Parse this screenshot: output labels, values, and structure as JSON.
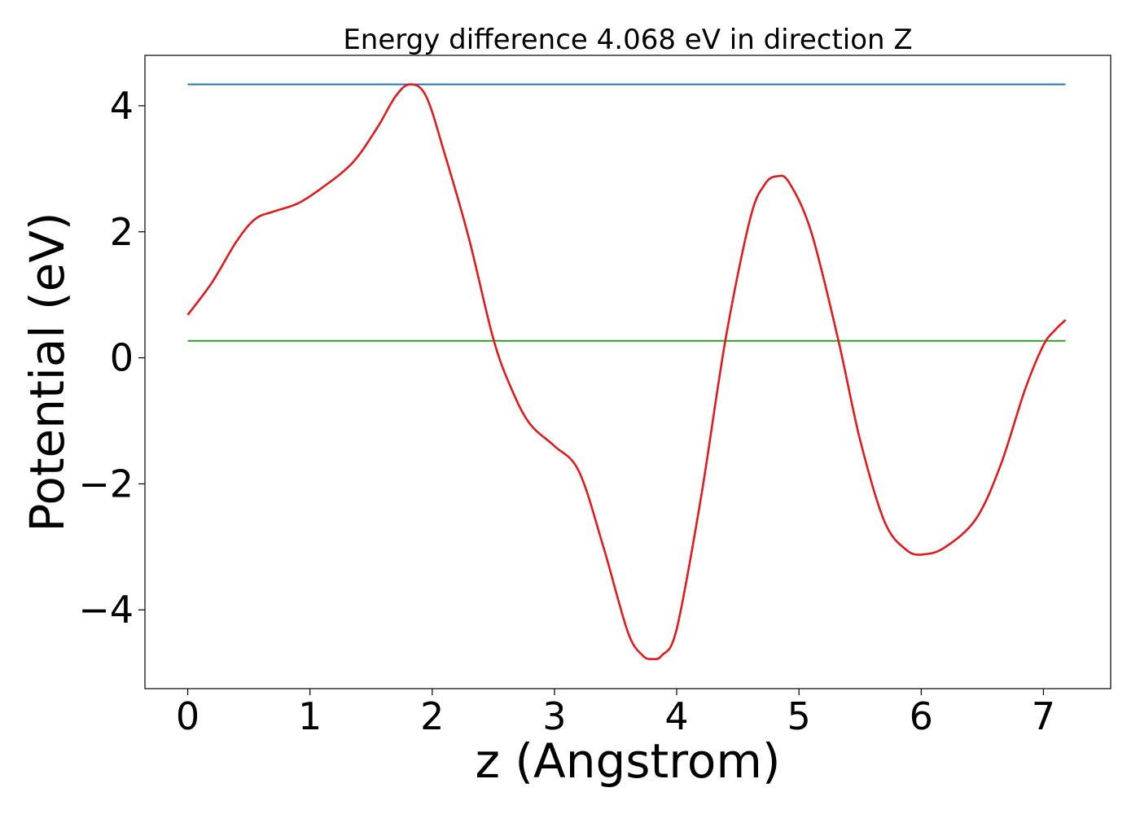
{
  "chart_data": {
    "type": "line",
    "title": "Energy difference 4.068 eV in direction Z",
    "xlabel": "z (Angstrom)",
    "ylabel": "Potential (eV)",
    "xlim": [
      -0.35,
      7.55
    ],
    "ylim": [
      -5.25,
      4.8
    ],
    "xticks": [
      0,
      1,
      2,
      3,
      4,
      5,
      6,
      7
    ],
    "xtick_labels": [
      "0",
      "1",
      "2",
      "3",
      "4",
      "5",
      "6",
      "7"
    ],
    "yticks": [
      -4,
      -2,
      0,
      2,
      4
    ],
    "ytick_labels": [
      "−4",
      "−2",
      "0",
      "2",
      "4"
    ],
    "grid": false,
    "series": [
      {
        "color": "#1f77b4",
        "x": [
          0,
          7.18
        ],
        "values": [
          4.34,
          4.34
        ]
      },
      {
        "color": "#2ca02c",
        "x": [
          0,
          7.18
        ],
        "values": [
          0.27,
          0.27
        ]
      },
      {
        "color": "#e31a1c",
        "x": [
          0,
          0.2,
          0.4,
          0.55,
          0.7,
          0.9,
          1.1,
          1.35,
          1.55,
          1.7,
          1.82,
          1.95,
          2.1,
          2.3,
          2.5,
          2.65,
          2.8,
          3.0,
          3.2,
          3.4,
          3.6,
          3.72,
          3.8,
          3.88,
          4.0,
          4.2,
          4.4,
          4.6,
          4.72,
          4.82,
          4.92,
          5.1,
          5.32,
          5.5,
          5.7,
          5.88,
          6.02,
          6.2,
          6.45,
          6.65,
          6.85,
          7.0,
          7.1,
          7.18
        ],
        "values": [
          0.68,
          1.2,
          1.85,
          2.2,
          2.32,
          2.45,
          2.7,
          3.1,
          3.65,
          4.15,
          4.34,
          4.15,
          3.25,
          1.9,
          0.3,
          -0.5,
          -1.05,
          -1.4,
          -1.8,
          -3.0,
          -4.35,
          -4.72,
          -4.78,
          -4.72,
          -4.3,
          -2.2,
          0.3,
          2.2,
          2.75,
          2.88,
          2.78,
          2.0,
          0.3,
          -1.3,
          -2.6,
          -3.05,
          -3.12,
          -3.0,
          -2.55,
          -1.7,
          -0.5,
          0.2,
          0.45,
          0.6
        ]
      }
    ]
  }
}
